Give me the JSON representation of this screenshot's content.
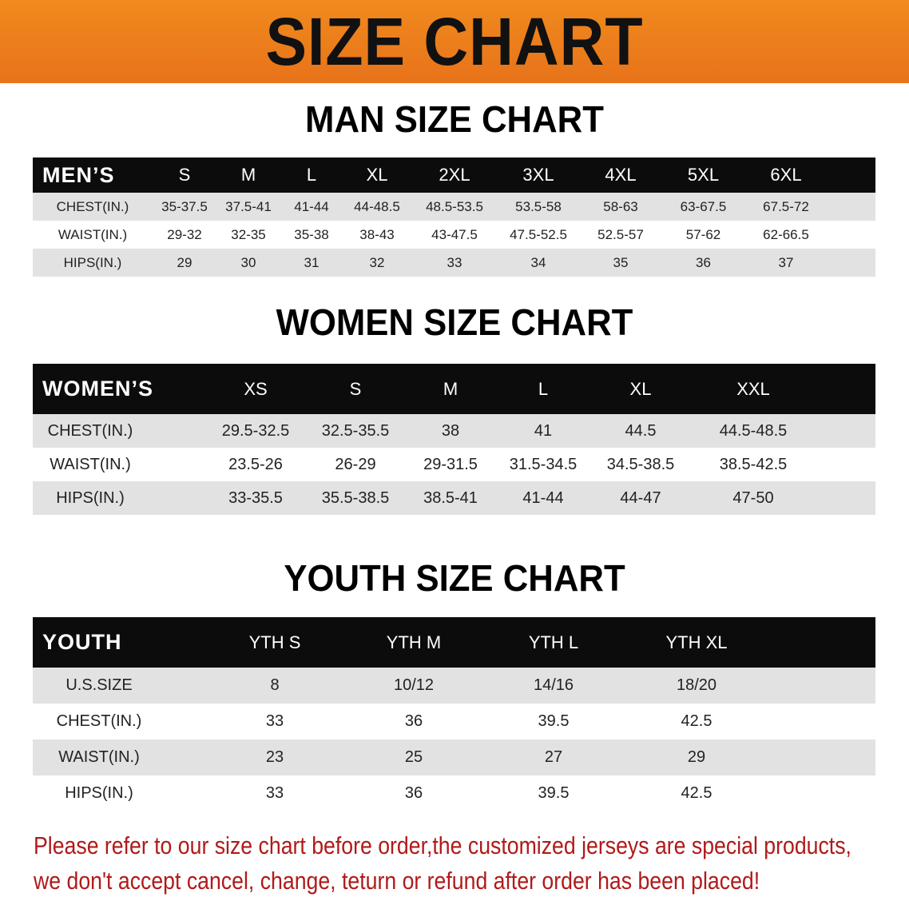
{
  "banner": {
    "title": "SIZE CHART",
    "color": "#ec7d1c"
  },
  "men": {
    "title": "MAN SIZE CHART",
    "header": "MEN’S",
    "sizes": [
      "S",
      "M",
      "L",
      "XL",
      "2XL",
      "3XL",
      "4XL",
      "5XL",
      "6XL"
    ],
    "rows": [
      {
        "label": "CHEST(IN.)",
        "values": [
          "35-37.5",
          "37.5-41",
          "41-44",
          "44-48.5",
          "48.5-53.5",
          "53.5-58",
          "58-63",
          "63-67.5",
          "67.5-72"
        ]
      },
      {
        "label": "WAIST(IN.)",
        "values": [
          "29-32",
          "32-35",
          "35-38",
          "38-43",
          "43-47.5",
          "47.5-52.5",
          "52.5-57",
          "57-62",
          "62-66.5"
        ]
      },
      {
        "label": "HIPS(IN.)",
        "values": [
          "29",
          "30",
          "31",
          "32",
          "33",
          "34",
          "35",
          "36",
          "37"
        ]
      }
    ]
  },
  "women": {
    "title": "WOMEN SIZE CHART",
    "header": "WOMEN’S",
    "sizes": [
      "XS",
      "S",
      "M",
      "L",
      "XL",
      "XXL"
    ],
    "rows": [
      {
        "label": "CHEST(IN.)",
        "values": [
          "29.5-32.5",
          "32.5-35.5",
          "38",
          "41",
          "44.5",
          "44.5-48.5"
        ]
      },
      {
        "label": "WAIST(IN.)",
        "values": [
          "23.5-26",
          "26-29",
          "29-31.5",
          "31.5-34.5",
          "34.5-38.5",
          "38.5-42.5"
        ]
      },
      {
        "label": "HIPS(IN.)",
        "values": [
          "33-35.5",
          "35.5-38.5",
          "38.5-41",
          "41-44",
          "44-47",
          "47-50"
        ]
      }
    ]
  },
  "youth": {
    "title": "YOUTH SIZE CHART",
    "header": "YOUTH",
    "sizes": [
      "YTH S",
      "YTH M",
      "YTH L",
      "YTH XL"
    ],
    "rows": [
      {
        "label": "U.S.SIZE",
        "values": [
          "8",
          "10/12",
          "14/16",
          "18/20"
        ]
      },
      {
        "label": "CHEST(IN.)",
        "values": [
          "33",
          "36",
          "39.5",
          "42.5"
        ]
      },
      {
        "label": "WAIST(IN.)",
        "values": [
          "23",
          "25",
          "27",
          "29"
        ]
      },
      {
        "label": "HIPS(IN.)",
        "values": [
          "33",
          "36",
          "39.5",
          "42.5"
        ]
      }
    ]
  },
  "note": {
    "line1": "Please refer to our size chart before order,the customized jerseys are special products,",
    "line2": "we don't accept cancel, change, teturn or refund after order has been placed!",
    "color": "#b01a1a"
  }
}
